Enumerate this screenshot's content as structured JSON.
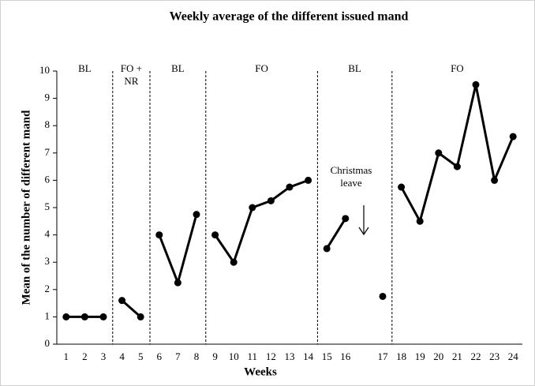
{
  "chart_data": {
    "type": "line",
    "title": "Weekly average of the different issued mand",
    "x_label": "Weeks",
    "y_label": "Mean of the number of different mand",
    "categories": [
      "1",
      "2",
      "3",
      "4",
      "5",
      "6",
      "7",
      "8",
      "9",
      "10",
      "11",
      "12",
      "13",
      "14",
      "15",
      "16",
      null,
      "17",
      "18",
      "19",
      "20",
      "21",
      "22",
      "23",
      "24"
    ],
    "ylim": [
      0,
      10
    ],
    "yticks": [
      0,
      1,
      2,
      3,
      4,
      5,
      6,
      7,
      8,
      9,
      10
    ],
    "phases": [
      "BL",
      "FO + NR",
      "BL",
      "FO",
      "BL",
      "FO"
    ],
    "annotation": "Christmas leave",
    "color": "#000000",
    "series": [
      {
        "values": [
          1,
          1,
          1,
          null,
          null,
          null,
          null,
          null,
          null,
          null,
          null,
          null,
          null,
          null,
          null,
          null,
          null,
          null,
          null,
          null,
          null,
          null,
          null,
          null,
          null
        ]
      },
      {
        "values": [
          null,
          null,
          null,
          1.6,
          1,
          null,
          null,
          null,
          null,
          null,
          null,
          null,
          null,
          null,
          null,
          null,
          null,
          null,
          null,
          null,
          null,
          null,
          null,
          null,
          null
        ]
      },
      {
        "values": [
          null,
          null,
          null,
          null,
          null,
          4,
          2.25,
          4.75,
          null,
          null,
          null,
          null,
          null,
          null,
          null,
          null,
          null,
          null,
          null,
          null,
          null,
          null,
          null,
          null,
          null
        ]
      },
      {
        "values": [
          null,
          null,
          null,
          null,
          null,
          null,
          null,
          null,
          4,
          3,
          5,
          5.25,
          5.75,
          6,
          null,
          null,
          null,
          null,
          null,
          null,
          null,
          null,
          null,
          null,
          null
        ]
      },
      {
        "values": [
          null,
          null,
          null,
          null,
          null,
          null,
          null,
          null,
          null,
          null,
          null,
          null,
          null,
          null,
          3.5,
          4.6,
          null,
          1.75,
          null,
          null,
          null,
          null,
          null,
          null,
          null
        ]
      },
      {
        "values": [
          null,
          null,
          null,
          null,
          null,
          null,
          null,
          null,
          null,
          null,
          null,
          null,
          null,
          null,
          null,
          null,
          null,
          null,
          5.75,
          4.5,
          7,
          6.5,
          9.5,
          6,
          7.6
        ]
      }
    ]
  }
}
